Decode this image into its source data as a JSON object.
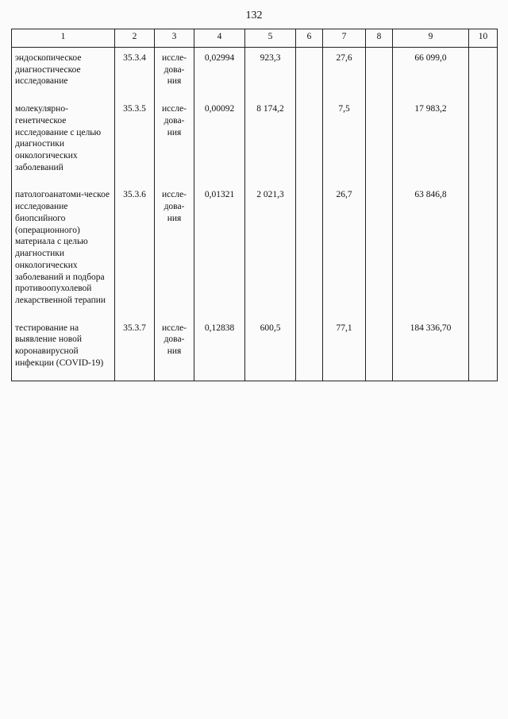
{
  "page_number": "132",
  "table": {
    "headers": [
      "1",
      "2",
      "3",
      "4",
      "5",
      "6",
      "7",
      "8",
      "9",
      "10"
    ],
    "rows": [
      {
        "name": "эндоскопическое диагностическое исследование",
        "code": "35.3.4",
        "unit": "иссле-дова-ния",
        "c4": "0,02994",
        "c5": "923,3",
        "c6": "",
        "c7": "27,6",
        "c8": "",
        "c9": "66 099,0",
        "c10": ""
      },
      {
        "name": "молекулярно-генетическое исследование с целью диагностики онкологических заболеваний",
        "code": "35.3.5",
        "unit": "иссле-дова-ния",
        "c4": "0,00092",
        "c5": "8 174,2",
        "c6": "",
        "c7": "7,5",
        "c8": "",
        "c9": "17 983,2",
        "c10": ""
      },
      {
        "name": "патологоанатоми-ческое исследование биопсийного (операционного) материала с целью диагностики онкологических заболеваний и подбора противоопухолевой лекарственной терапии",
        "code": "35.3.6",
        "unit": "иссле-дова-ния",
        "c4": "0,01321",
        "c5": "2 021,3",
        "c6": "",
        "c7": "26,7",
        "c8": "",
        "c9": "63 846,8",
        "c10": ""
      },
      {
        "name": "тестирование на выявление новой коронавирусной инфекции (COVID-19)",
        "code": "35.3.7",
        "unit": "иссле-дова-ния",
        "c4": "0,12838",
        "c5": "600,5",
        "c6": "",
        "c7": "77,1",
        "c8": "",
        "c9": "184 336,70",
        "c10": ""
      }
    ]
  }
}
